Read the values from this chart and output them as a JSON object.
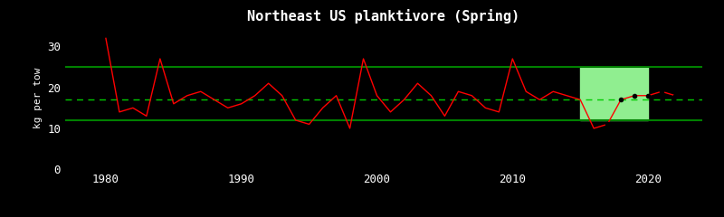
{
  "title": "Northeast US planktivore (Spring)",
  "ylabel": "kg per tow",
  "bg_color": "black",
  "text_color": "white",
  "years": [
    1980,
    1981,
    1982,
    1983,
    1984,
    1985,
    1986,
    1987,
    1988,
    1989,
    1990,
    1991,
    1992,
    1993,
    1994,
    1995,
    1996,
    1997,
    1998,
    1999,
    2000,
    2001,
    2002,
    2003,
    2004,
    2005,
    2006,
    2007,
    2008,
    2009,
    2010,
    2011,
    2012,
    2013,
    2014,
    2015,
    2016,
    2017,
    2018,
    2019,
    2020,
    2021,
    2022
  ],
  "values": [
    32,
    14,
    15,
    13,
    27,
    16,
    18,
    19,
    17,
    15,
    16,
    18,
    21,
    18,
    12,
    11,
    15,
    18,
    10,
    27,
    18,
    14,
    17,
    21,
    18,
    13,
    19,
    18,
    15,
    14,
    27,
    19,
    17,
    19,
    18,
    17,
    10,
    11,
    17,
    18,
    18,
    19,
    18
  ],
  "highlight_start": 2015,
  "highlight_end": 2020,
  "highlight_color": "#90EE90",
  "upper_threshold": 25,
  "lower_threshold": 12,
  "mean_line": 17.0,
  "ylim": [
    0,
    35
  ],
  "yticks": [
    0,
    10,
    20,
    30
  ],
  "xticks": [
    1980,
    1990,
    2000,
    2010,
    2020
  ],
  "xlim_left": 1977,
  "xlim_right": 2024,
  "line_color": "red",
  "threshold_color": "green",
  "mean_color": "#00cc00",
  "recent_dot_color": "black",
  "recent_years": [
    2017,
    2018,
    2019,
    2020,
    2021,
    2022
  ]
}
